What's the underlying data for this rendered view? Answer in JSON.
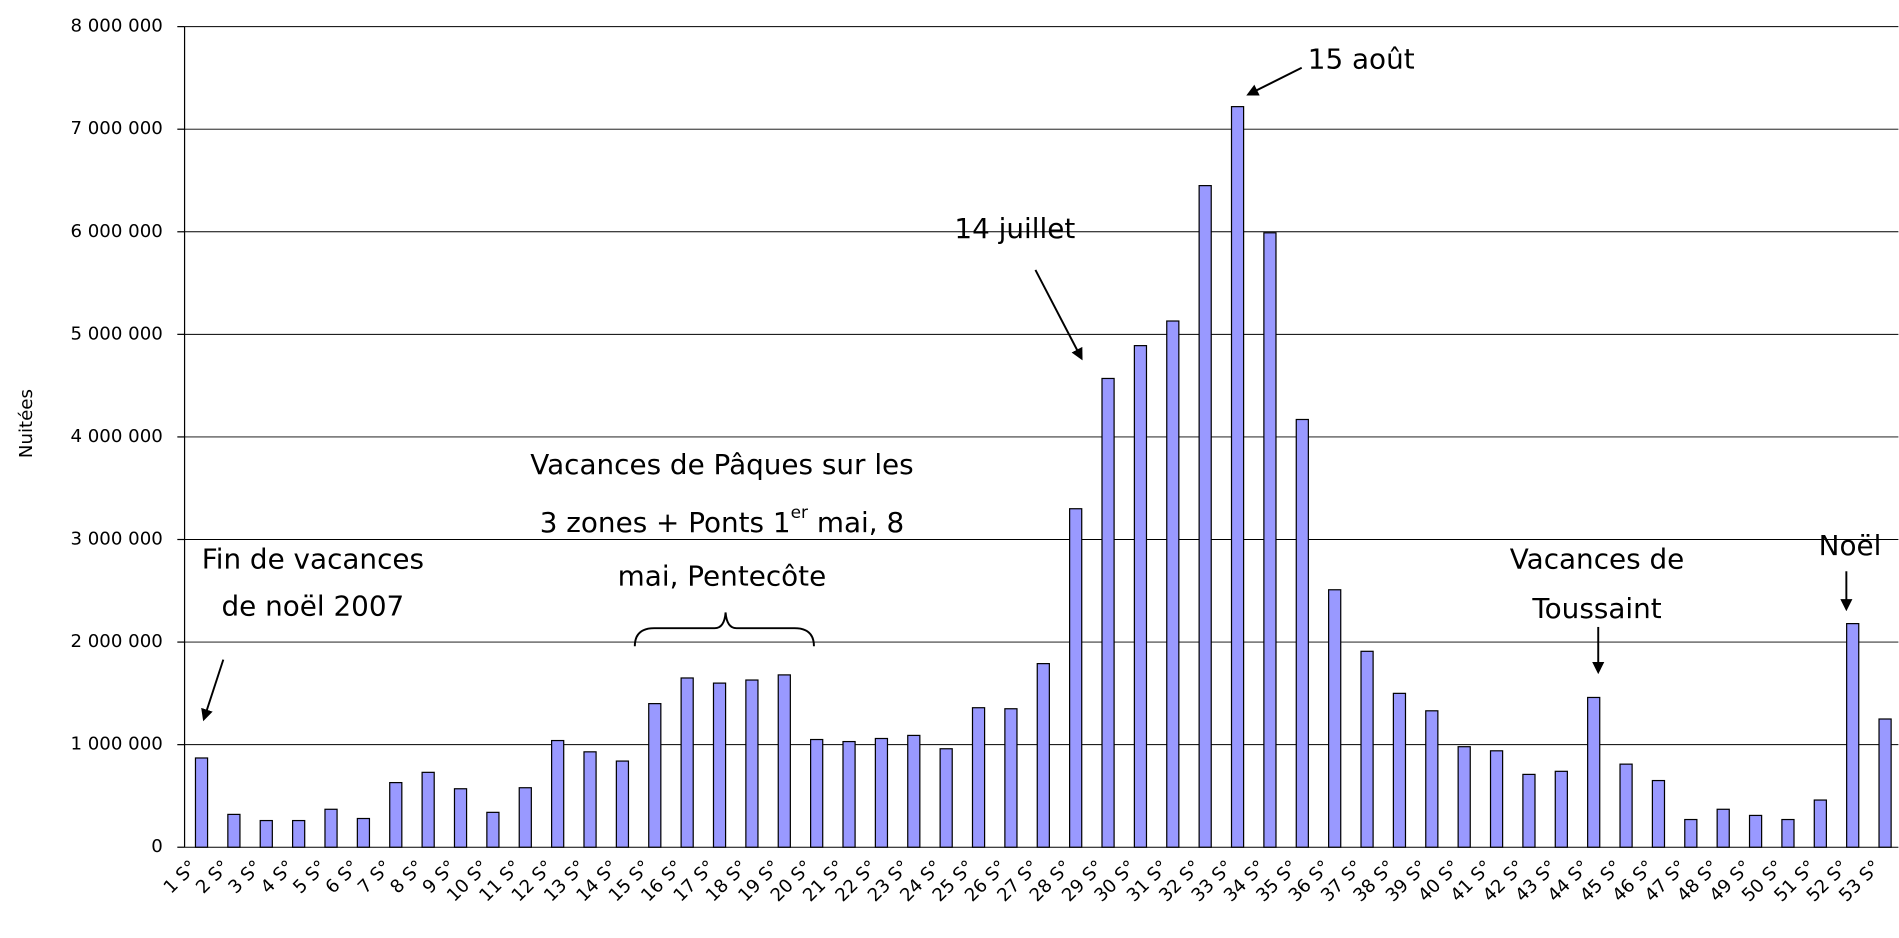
{
  "chart_data": {
    "type": "bar",
    "y_axis_label": "Nuitées",
    "categories": [
      "1 S°",
      "2 S°",
      "3 S°",
      "4 S°",
      "5 S°",
      "6 S°",
      "7 S°",
      "8 S°",
      "9 S°",
      "10 S°",
      "11 S°",
      "12 S°",
      "13 S°",
      "14 S°",
      "15 S°",
      "16 S°",
      "17 S°",
      "18 S°",
      "19 S°",
      "20 S°",
      "21 S°",
      "22 S°",
      "23 S°",
      "24 S°",
      "25 S°",
      "26 S°",
      "27 S°",
      "28 S°",
      "29 S°",
      "30 S°",
      "31 S°",
      "32 S°",
      "33 S°",
      "34 S°",
      "35 S°",
      "36 S°",
      "37 S°",
      "38 S°",
      "39 S°",
      "40 S°",
      "41 S°",
      "42 S°",
      "43 S°",
      "44 S°",
      "45 S°",
      "46 S°",
      "47 S°",
      "48 S°",
      "49 S°",
      "50 S°",
      "51 S°",
      "52 S°",
      "53 S°"
    ],
    "values": [
      870000,
      320000,
      260000,
      260000,
      370000,
      280000,
      630000,
      730000,
      570000,
      340000,
      580000,
      1040000,
      930000,
      840000,
      1400000,
      1650000,
      1600000,
      1630000,
      1680000,
      1050000,
      1030000,
      1060000,
      1090000,
      960000,
      1360000,
      1350000,
      1790000,
      3300000,
      4570000,
      4890000,
      5130000,
      6450000,
      7220000,
      5990000,
      4170000,
      2510000,
      1910000,
      1500000,
      1330000,
      980000,
      940000,
      710000,
      740000,
      1460000,
      810000,
      650000,
      270000,
      370000,
      310000,
      270000,
      460000,
      2180000,
      1250000
    ],
    "color": "#9999ff",
    "ylim": [
      0,
      8000000
    ],
    "yticks": [
      0,
      {
        "value": 1000000,
        "label": "1 000 000"
      },
      {
        "value": 2000000,
        "label": "2 000 000"
      },
      {
        "value": 3000000,
        "label": "3 000 000"
      },
      {
        "value": 4000000,
        "label": "4 000 000"
      },
      {
        "value": 5000000,
        "label": "5 000 000"
      },
      {
        "value": 6000000,
        "label": "6 000 000"
      },
      {
        "value": 7000000,
        "label": "7 000 000"
      },
      {
        "value": 8000000,
        "label": "8 000 000"
      }
    ],
    "grid": true,
    "annotations": [
      {
        "lines": [
          "Fin de vacances",
          "de noël 2007"
        ]
      },
      {
        "lines": [
          "Vacances de Pâques sur les",
          "3 zones + Ponts 1",
          "er",
          " mai, 8",
          "mai, Pentecôte"
        ]
      },
      {
        "lines": [
          "14 juillet"
        ]
      },
      {
        "lines": [
          "15 août"
        ]
      },
      {
        "lines": [
          "Vacances de",
          "Toussaint"
        ]
      },
      {
        "lines": [
          "Noël"
        ]
      }
    ]
  }
}
